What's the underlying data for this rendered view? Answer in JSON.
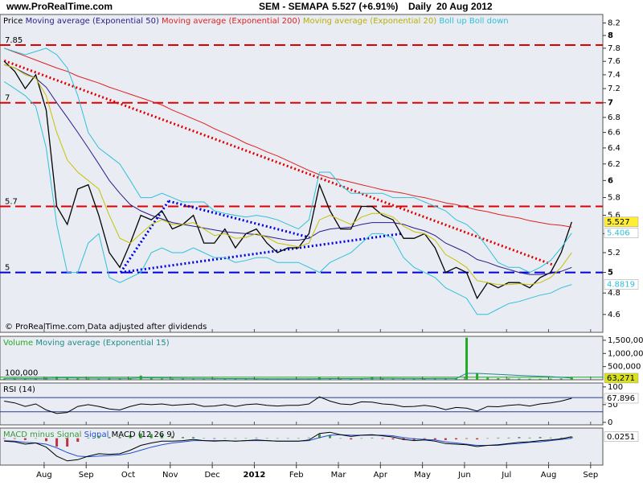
{
  "header": {
    "site": "www.ProRealTime.com",
    "symbol": "SEM - SEMAPA",
    "quote": "5.527 (+6.91%)",
    "period": "Daily",
    "date": "20 Aug 2012"
  },
  "chart_data": [
    {
      "type": "line",
      "log_scale": true,
      "x": [
        0.05,
        0.3,
        0.55,
        0.8,
        1.05,
        1.3,
        1.55,
        1.8,
        2.05,
        2.3,
        2.55,
        2.8,
        3.05,
        3.3,
        3.55,
        3.8,
        4.05,
        4.3,
        4.55,
        4.8,
        5.05,
        5.3,
        5.55,
        5.8,
        6.05,
        6.3,
        6.55,
        6.8,
        7.05,
        7.3,
        7.55,
        7.8,
        8.05,
        8.3,
        8.55,
        8.8,
        9.05,
        9.3,
        9.55,
        9.8,
        10.05,
        10.3,
        10.55,
        10.8,
        11.05,
        11.3,
        11.55,
        11.8,
        12.05,
        12.3,
        12.55,
        12.8,
        13.05,
        13.3,
        13.55
      ],
      "xlim": [
        -0.05,
        14.29
      ],
      "xticks": [
        {
          "value": 1,
          "label": "Aug"
        },
        {
          "value": 2,
          "label": "Sep"
        },
        {
          "value": 3,
          "label": "Oct"
        },
        {
          "value": 4,
          "label": "Nov"
        },
        {
          "value": 5,
          "label": "Dec"
        },
        {
          "value": 6,
          "label": "2012"
        },
        {
          "value": 7,
          "label": "Feb"
        },
        {
          "value": 8,
          "label": "Mar"
        },
        {
          "value": 9,
          "label": "Apr"
        },
        {
          "value": 10,
          "label": "May"
        },
        {
          "value": 11,
          "label": "Jun"
        },
        {
          "value": 12,
          "label": "Jul"
        },
        {
          "value": 13,
          "label": "Aug"
        },
        {
          "value": 14,
          "label": "Sep"
        }
      ],
      "ylim": [
        4.44,
        8.34
      ],
      "yticks": [
        4.6,
        4.8,
        5,
        5.2,
        5.4,
        5.6,
        5.8,
        6,
        6.2,
        6.4,
        6.6,
        6.8,
        7,
        7.2,
        7.4,
        7.6,
        7.8,
        8,
        8.2
      ],
      "series": [
        {
          "name": "Price",
          "color": "#000000",
          "tag_fill": "#ffee33",
          "values": [
            7.6,
            7.45,
            7.2,
            7.4,
            6.9,
            5.7,
            5.5,
            5.9,
            5.95,
            5.6,
            5.2,
            5.05,
            5.3,
            5.6,
            5.55,
            5.65,
            5.45,
            5.5,
            5.6,
            5.3,
            5.3,
            5.45,
            5.25,
            5.4,
            5.45,
            5.3,
            5.2,
            5.25,
            5.25,
            5.4,
            5.95,
            5.65,
            5.45,
            5.45,
            5.7,
            5.7,
            5.6,
            5.55,
            5.35,
            5.35,
            5.4,
            5.25,
            5.0,
            5.05,
            5.0,
            4.75,
            4.9,
            4.85,
            4.9,
            4.9,
            4.85,
            4.95,
            5.0,
            5.2,
            5.527
          ]
        },
        {
          "name": "Moving average (Exponential 50)",
          "color": "#2a1a8a",
          "values": [
            7.55,
            7.5,
            7.42,
            7.35,
            7.22,
            7.0,
            6.8,
            6.6,
            6.4,
            6.2,
            6.0,
            5.85,
            5.72,
            5.65,
            5.6,
            5.56,
            5.52,
            5.5,
            5.48,
            5.46,
            5.44,
            5.42,
            5.41,
            5.4,
            5.39,
            5.37,
            5.35,
            5.33,
            5.33,
            5.35,
            5.42,
            5.45,
            5.46,
            5.47,
            5.5,
            5.52,
            5.52,
            5.52,
            5.5,
            5.46,
            5.43,
            5.38,
            5.3,
            5.25,
            5.2,
            5.13,
            5.1,
            5.06,
            5.03,
            5.0,
            4.98,
            4.98,
            4.99,
            5.01,
            5.05
          ]
        },
        {
          "name": "Moving average (Exponential 200)",
          "color": "#e02020",
          "values": [
            7.8,
            7.74,
            7.68,
            7.62,
            7.56,
            7.5,
            7.45,
            7.38,
            7.33,
            7.28,
            7.22,
            7.17,
            7.12,
            7.07,
            7.02,
            6.97,
            6.9,
            6.84,
            6.78,
            6.72,
            6.65,
            6.59,
            6.53,
            6.46,
            6.41,
            6.35,
            6.3,
            6.24,
            6.18,
            6.12,
            6.07,
            6.03,
            6.01,
            5.98,
            5.95,
            5.92,
            5.89,
            5.87,
            5.85,
            5.82,
            5.8,
            5.77,
            5.74,
            5.72,
            5.69,
            5.66,
            5.64,
            5.61,
            5.59,
            5.57,
            5.54,
            5.52,
            5.5,
            5.49,
            5.47
          ]
        },
        {
          "name": "Moving average (Exponential 20)",
          "color": "#c8c000",
          "values": [
            7.55,
            7.5,
            7.4,
            7.35,
            7.1,
            6.6,
            6.25,
            6.1,
            6.0,
            5.9,
            5.6,
            5.35,
            5.3,
            5.4,
            5.5,
            5.55,
            5.5,
            5.5,
            5.52,
            5.45,
            5.38,
            5.4,
            5.35,
            5.36,
            5.4,
            5.36,
            5.3,
            5.28,
            5.26,
            5.3,
            5.55,
            5.6,
            5.55,
            5.5,
            5.58,
            5.62,
            5.62,
            5.58,
            5.48,
            5.42,
            5.4,
            5.33,
            5.18,
            5.12,
            5.05,
            4.92,
            4.9,
            4.88,
            4.88,
            4.89,
            4.88,
            4.9,
            4.95,
            5.05,
            5.2
          ]
        },
        {
          "name": "Boll up",
          "color": "#30c0d8",
          "tag_fill": "#ffffff",
          "values": [
            7.8,
            7.75,
            7.7,
            7.75,
            7.8,
            7.7,
            7.5,
            7.1,
            6.6,
            6.4,
            6.3,
            6.2,
            6.0,
            5.8,
            5.8,
            5.85,
            5.8,
            5.75,
            5.75,
            5.75,
            5.65,
            5.62,
            5.6,
            5.58,
            5.6,
            5.58,
            5.55,
            5.5,
            5.45,
            5.55,
            6.1,
            6.1,
            5.95,
            5.85,
            5.85,
            5.85,
            5.85,
            5.8,
            5.8,
            5.8,
            5.75,
            5.7,
            5.65,
            5.55,
            5.5,
            5.4,
            5.25,
            5.1,
            5.05,
            5.05,
            5.0,
            5.05,
            5.12,
            5.25,
            5.406
          ]
        },
        {
          "name": "Boll down",
          "color": "#30c0d8",
          "tag_fill": "#ffffff",
          "values": [
            7.3,
            7.2,
            7.1,
            6.95,
            6.4,
            5.5,
            5.0,
            5.0,
            5.3,
            5.4,
            4.95,
            4.9,
            4.95,
            5.0,
            5.2,
            5.25,
            5.2,
            5.2,
            5.25,
            5.2,
            5.15,
            5.15,
            5.1,
            5.12,
            5.15,
            5.15,
            5.1,
            5.1,
            5.1,
            5.05,
            5.0,
            5.1,
            5.15,
            5.2,
            5.3,
            5.4,
            5.4,
            5.35,
            5.15,
            5.05,
            5.0,
            4.95,
            4.85,
            4.8,
            4.75,
            4.6,
            4.6,
            4.65,
            4.7,
            4.72,
            4.75,
            4.78,
            4.8,
            4.85,
            4.8819
          ]
        }
      ],
      "hlines": [
        {
          "value": 7.85,
          "color": "#e00000"
        },
        {
          "value": 7,
          "color": "#e00000"
        },
        {
          "value": 5.7,
          "color": "#e00000"
        },
        {
          "value": 5,
          "color": "#0000e0"
        }
      ],
      "hline_dash": true,
      "label_hlines": true,
      "trendlines": [
        {
          "x": [
            0.05,
            13.14
          ],
          "y": [
            7.61,
            5.07
          ],
          "color": "#e00000"
        },
        {
          "x": [
            2.82,
            3.96
          ],
          "y": [
            5.0,
            5.76
          ],
          "color": "#0000e0"
        },
        {
          "x": [
            3.96,
            7.31
          ],
          "y": [
            5.76,
            5.36
          ],
          "color": "#0000e0"
        },
        {
          "x": [
            2.82,
            9.51
          ],
          "y": [
            5.0,
            5.4
          ],
          "color": "#0000e0"
        }
      ],
      "note": "© ProRealTime.com Data adjusted after dividends"
    },
    {
      "type": "bar",
      "ylim": [
        0,
        1650000
      ],
      "yticks": [
        {
          "value": 500000,
          "label": "500,000"
        },
        {
          "value": 1000000,
          "label": "1,000,000"
        },
        {
          "value": 1500000,
          "label": "1,500,000"
        }
      ],
      "series": [
        {
          "name": "Volume",
          "color": "#22aa22",
          "values": [
            45000,
            60000,
            38000,
            52000,
            80000,
            120000,
            70000,
            55000,
            40000,
            35000,
            50000,
            42000,
            48000,
            160000,
            60000,
            45000,
            38000,
            41000,
            36000,
            30000,
            28000,
            33000,
            40000,
            35000,
            30000,
            32000,
            27000,
            30000,
            25000,
            45000,
            90000,
            60000,
            50000,
            42000,
            55000,
            110000,
            48000,
            40000,
            35000,
            38000,
            42000,
            50000,
            60000,
            45000,
            1600000,
            250000,
            80000,
            60000,
            50000,
            45000,
            40000,
            38000,
            42000,
            50000,
            95000
          ]
        },
        {
          "name": "Moving average (Exponential 15)",
          "type": "line",
          "color": "#1f8a8a",
          "tag_fill": "#d8e020",
          "values": [
            50000,
            52000,
            50000,
            50000,
            55000,
            65000,
            66000,
            64000,
            61000,
            58000,
            57000,
            55000,
            54000,
            67000,
            66000,
            63000,
            60000,
            57000,
            55000,
            52000,
            49000,
            47000,
            46000,
            45000,
            43000,
            41000,
            39000,
            38000,
            36000,
            37000,
            43000,
            45000,
            46000,
            45000,
            46000,
            54000,
            53000,
            51000,
            49000,
            48000,
            47000,
            48000,
            49000,
            49000,
            245000,
            245000,
            225000,
            205000,
            185000,
            165000,
            150000,
            135000,
            120000,
            95000,
            63271
          ],
          "value_labels": [
            null,
            null,
            null,
            null,
            null,
            null,
            null,
            null,
            null,
            null,
            null,
            null,
            null,
            null,
            null,
            null,
            null,
            null,
            null,
            null,
            null,
            null,
            null,
            null,
            null,
            null,
            null,
            null,
            null,
            null,
            null,
            null,
            null,
            null,
            null,
            null,
            null,
            null,
            null,
            null,
            null,
            null,
            null,
            null,
            null,
            null,
            null,
            null,
            null,
            null,
            null,
            null,
            null,
            null,
            "63,271"
          ]
        }
      ],
      "hlines": [
        {
          "value": 100000,
          "label": "100,000",
          "color": "#22aa22"
        }
      ]
    },
    {
      "type": "line",
      "ylim": [
        -7,
        111
      ],
      "yticks": [
        0,
        50,
        100
      ],
      "series": [
        {
          "name": "RSI (14)",
          "color": "#000000",
          "tag_fill": "#ffffff",
          "values": [
            60,
            55,
            45,
            52,
            35,
            25,
            28,
            45,
            50,
            45,
            38,
            35,
            45,
            52,
            50,
            52,
            48,
            50,
            52,
            45,
            46,
            50,
            45,
            50,
            52,
            48,
            46,
            48,
            48,
            52,
            72,
            60,
            52,
            50,
            58,
            57,
            52,
            50,
            44,
            45,
            48,
            44,
            36,
            42,
            40,
            32,
            45,
            44,
            48,
            50,
            46,
            52,
            55,
            60,
            67.896
          ]
        }
      ],
      "hlines": [
        70,
        30
      ]
    },
    {
      "type": "line",
      "ylim": [
        -0.45,
        0.17
      ],
      "series": [
        {
          "name": "MACD minus Signal",
          "type": "bar",
          "color": "#3a9a3a",
          "negative_color": "#c03040",
          "values": [
            -0.01,
            -0.01,
            -0.03,
            0,
            -0.05,
            -0.14,
            -0.14,
            -0.06,
            0.01,
            0.04,
            0.02,
            0.02,
            0.05,
            0.08,
            0.07,
            0.06,
            0.03,
            0.02,
            0.02,
            0,
            -0.01,
            0,
            0,
            0,
            0.01,
            0,
            0,
            0,
            0,
            0.01,
            0.07,
            0.05,
            0,
            -0.02,
            0,
            0.01,
            -0.01,
            -0.02,
            -0.03,
            -0.03,
            -0.01,
            -0.02,
            -0.03,
            -0.02,
            -0.01,
            -0.02,
            0,
            0.01,
            0.01,
            0.02,
            0.01,
            0.02,
            0.01,
            0.01,
            0.0251
          ]
        },
        {
          "name": "Signal",
          "color": "#2050d0",
          "values": [
            -0.04,
            -0.05,
            -0.07,
            -0.08,
            -0.1,
            -0.16,
            -0.24,
            -0.3,
            -0.31,
            -0.3,
            -0.29,
            -0.28,
            -0.25,
            -0.2,
            -0.15,
            -0.11,
            -0.08,
            -0.06,
            -0.04,
            -0.04,
            -0.04,
            -0.04,
            -0.05,
            -0.04,
            -0.04,
            -0.04,
            -0.05,
            -0.05,
            -0.05,
            -0.04,
            0.01,
            0.05,
            0.06,
            0.05,
            0.05,
            0.05,
            0.05,
            0.04,
            0.01,
            -0.01,
            -0.02,
            -0.03,
            -0.06,
            -0.08,
            -0.1,
            -0.12,
            -0.12,
            -0.12,
            -0.1,
            -0.09,
            -0.07,
            -0.06,
            -0.04,
            -0.02,
            0.0
          ]
        },
        {
          "name": "MACD (12 26 9)",
          "color": "#000000",
          "tag_fill": "#ffffff",
          "values": [
            -0.05,
            -0.06,
            -0.1,
            -0.08,
            -0.15,
            -0.3,
            -0.38,
            -0.36,
            -0.3,
            -0.26,
            -0.27,
            -0.26,
            -0.2,
            -0.12,
            -0.08,
            -0.05,
            -0.05,
            -0.04,
            -0.02,
            -0.04,
            -0.05,
            -0.04,
            -0.05,
            -0.04,
            -0.03,
            -0.04,
            -0.05,
            -0.05,
            -0.05,
            -0.03,
            0.08,
            0.1,
            0.06,
            0.03,
            0.05,
            0.06,
            0.04,
            0.02,
            -0.02,
            -0.04,
            -0.03,
            -0.05,
            -0.09,
            -0.1,
            -0.11,
            -0.14,
            -0.12,
            -0.11,
            -0.09,
            -0.07,
            -0.06,
            -0.04,
            -0.03,
            -0.01,
            0.0251
          ]
        }
      ]
    }
  ]
}
